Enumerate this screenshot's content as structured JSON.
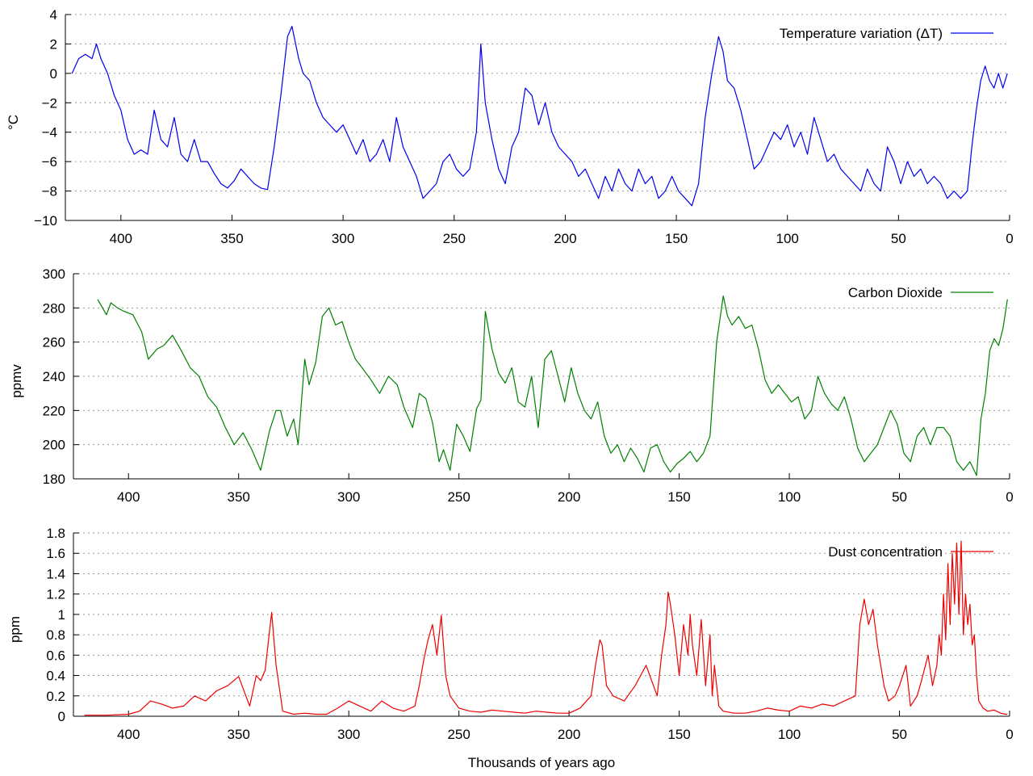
{
  "x_axis_title": "Thousands of years ago",
  "chart_data": [
    {
      "type": "line",
      "ylabel": "°C",
      "xlim": [
        425,
        0
      ],
      "ylim": [
        -10,
        4
      ],
      "x_ticks": [
        400,
        350,
        300,
        250,
        200,
        150,
        100,
        50,
        0
      ],
      "y_ticks": [
        4,
        2,
        0,
        -2,
        -4,
        -6,
        -8,
        -10
      ],
      "y_tick_labels": [
        "4",
        "2",
        "0",
        "−2",
        "−4",
        "−6",
        "−8",
        "−10"
      ],
      "grid": true,
      "legend_position": "top-right",
      "series": [
        {
          "name": "Temperature variation (ΔT)",
          "color": "#0000ee",
          "x": [
            422,
            419,
            416,
            413,
            411,
            409,
            406,
            403,
            400,
            397,
            394,
            391,
            388,
            385,
            382,
            379,
            376,
            373,
            370,
            367,
            364,
            361,
            358,
            355,
            352,
            349,
            346,
            343,
            340,
            337,
            334,
            331,
            328,
            325,
            323,
            320,
            318,
            315,
            312,
            309,
            306,
            303,
            300,
            297,
            294,
            291,
            288,
            285,
            282,
            279,
            276,
            273,
            270,
            267,
            264,
            261,
            258,
            255,
            252,
            249,
            246,
            243,
            240,
            238,
            236,
            233,
            230,
            227,
            224,
            221,
            218,
            215,
            212,
            209,
            206,
            203,
            200,
            197,
            194,
            191,
            188,
            185,
            182,
            179,
            176,
            173,
            170,
            167,
            164,
            161,
            158,
            155,
            152,
            149,
            146,
            143,
            140,
            137,
            134,
            131,
            129,
            127,
            124,
            121,
            118,
            115,
            112,
            109,
            106,
            103,
            100,
            97,
            94,
            91,
            88,
            85,
            82,
            79,
            76,
            73,
            70,
            67,
            64,
            61,
            58,
            55,
            52,
            49,
            46,
            43,
            40,
            37,
            34,
            31,
            28,
            25,
            22,
            19,
            17,
            15,
            13,
            11,
            9,
            7,
            5,
            3,
            1
          ],
          "y": [
            0.0,
            1.0,
            1.3,
            1.0,
            2.0,
            1.0,
            0.0,
            -1.5,
            -2.5,
            -4.5,
            -5.5,
            -5.2,
            -5.5,
            -2.5,
            -4.5,
            -5.0,
            -3.0,
            -5.5,
            -6.0,
            -4.5,
            -6.0,
            -6.0,
            -6.8,
            -7.5,
            -7.8,
            -7.3,
            -6.5,
            -7.0,
            -7.5,
            -7.8,
            -7.9,
            -5.0,
            -1.5,
            2.5,
            3.2,
            1.0,
            0.0,
            -0.5,
            -2.0,
            -3.0,
            -3.5,
            -4.0,
            -3.5,
            -4.5,
            -5.5,
            -4.5,
            -6.0,
            -5.5,
            -4.5,
            -6.0,
            -3.0,
            -5.0,
            -6.0,
            -7.0,
            -8.5,
            -8.0,
            -7.5,
            -6.0,
            -5.5,
            -6.5,
            -7.0,
            -6.5,
            -4.0,
            2.0,
            -2.0,
            -4.5,
            -6.5,
            -7.5,
            -5.0,
            -4.0,
            -1.0,
            -1.5,
            -3.5,
            -2.0,
            -4.0,
            -5.0,
            -5.5,
            -6.0,
            -7.0,
            -6.5,
            -7.5,
            -8.5,
            -7.0,
            -8.0,
            -6.5,
            -7.5,
            -8.0,
            -6.5,
            -7.5,
            -7.0,
            -8.5,
            -8.0,
            -7.0,
            -8.0,
            -8.5,
            -9.0,
            -7.5,
            -3.0,
            0.0,
            2.5,
            1.5,
            -0.5,
            -1.0,
            -2.5,
            -4.5,
            -6.5,
            -6.0,
            -5.0,
            -4.0,
            -4.5,
            -3.5,
            -5.0,
            -4.0,
            -5.5,
            -3.0,
            -4.5,
            -6.0,
            -5.5,
            -6.5,
            -7.0,
            -7.5,
            -8.0,
            -6.5,
            -7.5,
            -8.0,
            -5.0,
            -6.0,
            -7.5,
            -6.0,
            -7.0,
            -6.5,
            -7.5,
            -7.0,
            -7.5,
            -8.5,
            -8.0,
            -8.5,
            -8.0,
            -5.0,
            -2.5,
            -0.5,
            0.5,
            -0.5,
            -1.0,
            0.0,
            -1.0,
            0.0
          ]
        }
      ]
    },
    {
      "type": "line",
      "ylabel": "ppmv",
      "xlim": [
        425,
        0
      ],
      "ylim": [
        180,
        300
      ],
      "x_ticks": [
        400,
        350,
        300,
        250,
        200,
        150,
        100,
        50,
        0
      ],
      "y_ticks": [
        300,
        280,
        260,
        240,
        220,
        200,
        180
      ],
      "y_tick_labels": [
        "300",
        "280",
        "260",
        "240",
        "220",
        "200",
        "180"
      ],
      "grid": true,
      "legend_position": "top-right",
      "series": [
        {
          "name": "Carbon Dioxide",
          "color": "#008000",
          "x": [
            414,
            410,
            408,
            405,
            402,
            398,
            394,
            391,
            387,
            384,
            380,
            376,
            372,
            368,
            364,
            360,
            356,
            352,
            348,
            344,
            340,
            336,
            333,
            331,
            328,
            325,
            323,
            320,
            318,
            315,
            312,
            309,
            306,
            303,
            300,
            297,
            294,
            290,
            286,
            282,
            278,
            275,
            271,
            268,
            265,
            262,
            259,
            257,
            254,
            251,
            248,
            245,
            242,
            240,
            238,
            235,
            232,
            229,
            226,
            223,
            220,
            217,
            214,
            211,
            208,
            205,
            202,
            199,
            196,
            193,
            190,
            187,
            184,
            181,
            178,
            175,
            172,
            169,
            166,
            163,
            160,
            157,
            154,
            151,
            148,
            145,
            142,
            139,
            136,
            133,
            130,
            128,
            126,
            123,
            120,
            117,
            114,
            111,
            108,
            105,
            102,
            99,
            96,
            93,
            90,
            87,
            84,
            81,
            78,
            75,
            72,
            69,
            66,
            63,
            60,
            57,
            54,
            51,
            48,
            45,
            42,
            39,
            36,
            33,
            30,
            27,
            24,
            21,
            18,
            15,
            13,
            11,
            9,
            7,
            5,
            3,
            1
          ],
          "y": [
            285,
            276,
            283,
            280,
            278,
            276,
            266,
            250,
            256,
            258,
            264,
            255,
            245,
            240,
            228,
            222,
            210,
            200,
            207,
            197,
            185,
            208,
            220,
            220,
            205,
            215,
            200,
            250,
            235,
            248,
            275,
            280,
            270,
            272,
            260,
            250,
            245,
            238,
            230,
            240,
            235,
            222,
            210,
            230,
            227,
            213,
            190,
            197,
            185,
            212,
            205,
            196,
            221,
            226,
            278,
            256,
            242,
            236,
            245,
            225,
            222,
            240,
            210,
            250,
            255,
            240,
            225,
            245,
            230,
            220,
            215,
            225,
            205,
            195,
            200,
            190,
            198,
            192,
            184,
            198,
            200,
            190,
            184,
            189,
            192,
            196,
            190,
            195,
            205,
            260,
            287,
            275,
            270,
            275,
            268,
            270,
            256,
            238,
            230,
            235,
            230,
            225,
            228,
            215,
            220,
            240,
            230,
            224,
            220,
            228,
            215,
            198,
            190,
            195,
            200,
            210,
            220,
            212,
            195,
            190,
            205,
            210,
            200,
            210,
            210,
            205,
            190,
            185,
            190,
            182,
            215,
            230,
            255,
            262,
            258,
            268,
            285
          ]
        }
      ]
    },
    {
      "type": "line",
      "ylabel": "ppm",
      "xlim": [
        425,
        0
      ],
      "ylim": [
        0,
        1.8
      ],
      "x_ticks": [
        400,
        350,
        300,
        250,
        200,
        150,
        100,
        50,
        0
      ],
      "y_ticks": [
        1.8,
        1.6,
        1.4,
        1.2,
        1,
        0.8,
        0.6,
        0.4,
        0.2,
        0
      ],
      "y_tick_labels": [
        "1.8",
        "1.6",
        "1.4",
        "1.2",
        "1",
        "0.8",
        "0.6",
        "0.4",
        "0.2",
        "0"
      ],
      "grid": true,
      "legend_position": "top-right",
      "series": [
        {
          "name": "Dust concentration",
          "color": "#ee0000",
          "x": [
            420,
            410,
            400,
            395,
            390,
            385,
            380,
            375,
            370,
            365,
            360,
            355,
            350,
            345,
            342,
            340,
            338,
            335,
            333,
            330,
            325,
            320,
            315,
            310,
            305,
            300,
            295,
            290,
            285,
            280,
            275,
            270,
            268,
            266,
            264,
            262,
            260,
            258,
            256,
            254,
            250,
            245,
            240,
            235,
            230,
            225,
            220,
            215,
            210,
            205,
            200,
            195,
            190,
            188,
            186,
            185,
            183,
            180,
            175,
            170,
            165,
            160,
            158,
            156,
            155,
            154,
            152,
            150,
            148,
            146,
            145,
            144,
            142,
            140,
            138,
            136,
            135,
            134,
            132,
            130,
            125,
            120,
            115,
            110,
            105,
            100,
            95,
            90,
            85,
            80,
            75,
            70,
            68,
            66,
            64,
            62,
            60,
            57,
            55,
            52,
            50,
            47,
            45,
            42,
            40,
            37,
            35,
            33,
            32,
            31,
            30,
            29,
            28,
            27,
            26,
            25,
            24,
            23,
            22,
            21,
            20,
            19,
            18,
            17,
            16,
            15,
            14,
            12,
            10,
            7,
            4,
            2,
            1
          ],
          "y": [
            0.01,
            0.01,
            0.02,
            0.05,
            0.15,
            0.12,
            0.08,
            0.1,
            0.2,
            0.15,
            0.25,
            0.3,
            0.39,
            0.1,
            0.4,
            0.35,
            0.45,
            1.02,
            0.5,
            0.05,
            0.02,
            0.03,
            0.02,
            0.02,
            0.08,
            0.15,
            0.1,
            0.05,
            0.15,
            0.08,
            0.05,
            0.1,
            0.3,
            0.55,
            0.75,
            0.9,
            0.6,
            0.99,
            0.4,
            0.2,
            0.08,
            0.05,
            0.04,
            0.06,
            0.05,
            0.04,
            0.03,
            0.05,
            0.04,
            0.03,
            0.03,
            0.08,
            0.2,
            0.5,
            0.75,
            0.7,
            0.3,
            0.2,
            0.15,
            0.3,
            0.5,
            0.2,
            0.6,
            0.9,
            1.22,
            1.1,
            0.8,
            0.4,
            0.9,
            0.6,
            1.0,
            0.7,
            0.4,
            0.95,
            0.3,
            0.8,
            0.2,
            0.5,
            0.1,
            0.05,
            0.03,
            0.03,
            0.05,
            0.08,
            0.06,
            0.05,
            0.1,
            0.08,
            0.12,
            0.1,
            0.15,
            0.2,
            0.9,
            1.15,
            0.9,
            1.05,
            0.7,
            0.3,
            0.15,
            0.2,
            0.3,
            0.5,
            0.1,
            0.2,
            0.35,
            0.6,
            0.3,
            0.5,
            0.8,
            0.6,
            1.2,
            0.75,
            1.5,
            0.9,
            1.6,
            1.1,
            1.7,
            1.0,
            1.72,
            0.8,
            1.2,
            0.9,
            1.1,
            0.7,
            0.8,
            0.4,
            0.15,
            0.08,
            0.05,
            0.06,
            0.03,
            0.02,
            0.02
          ]
        }
      ]
    }
  ]
}
